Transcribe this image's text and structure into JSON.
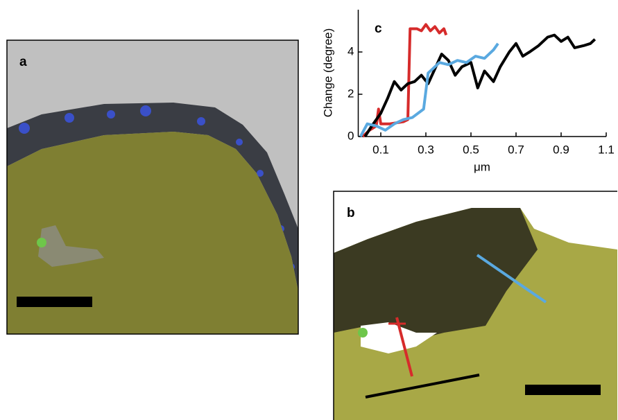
{
  "panels": [
    {
      "label": "a"
    },
    {
      "label": "b"
    }
  ],
  "chart_data": {
    "type": "line",
    "label": "c",
    "ylabel": "Change (degree)",
    "xlabel": "μm",
    "xlim": [
      0,
      1.1
    ],
    "xticks": [
      0.1,
      0.3,
      0.5,
      0.7,
      0.9,
      1.1
    ],
    "ylim": [
      0,
      6
    ],
    "yticks": [
      0,
      2,
      4
    ],
    "series": [
      {
        "name": "red",
        "color": "#d62b2b",
        "x": [
          0.02,
          0.05,
          0.08,
          0.09,
          0.1,
          0.14,
          0.2,
          0.22,
          0.23,
          0.26,
          0.28,
          0.3,
          0.32,
          0.34,
          0.36,
          0.38,
          0.39
        ],
        "values": [
          0,
          0.3,
          0.5,
          1.3,
          0.6,
          0.6,
          0.7,
          0.8,
          5.1,
          5.1,
          5.0,
          5.3,
          5.0,
          5.2,
          4.9,
          5.1,
          4.8
        ]
      },
      {
        "name": "black",
        "color": "#000000",
        "x": [
          0.03,
          0.06,
          0.1,
          0.13,
          0.16,
          0.19,
          0.22,
          0.25,
          0.28,
          0.31,
          0.34,
          0.37,
          0.4,
          0.43,
          0.46,
          0.5,
          0.53,
          0.56,
          0.6,
          0.63,
          0.67,
          0.7,
          0.73,
          0.76,
          0.8,
          0.84,
          0.87,
          0.9,
          0.93,
          0.96,
          1.0,
          1.03,
          1.05
        ],
        "values": [
          0,
          0.5,
          1.1,
          1.8,
          2.6,
          2.2,
          2.5,
          2.6,
          2.9,
          2.5,
          3.2,
          3.9,
          3.6,
          2.9,
          3.3,
          3.5,
          2.3,
          3.1,
          2.6,
          3.3,
          4.0,
          4.4,
          3.8,
          4.0,
          4.3,
          4.7,
          4.8,
          4.5,
          4.7,
          4.2,
          4.3,
          4.4,
          4.6
        ]
      },
      {
        "name": "blue",
        "color": "#5aa9e0",
        "x": [
          0.01,
          0.04,
          0.08,
          0.12,
          0.16,
          0.2,
          0.24,
          0.29,
          0.31,
          0.33,
          0.36,
          0.4,
          0.44,
          0.48,
          0.52,
          0.56,
          0.6,
          0.62
        ],
        "values": [
          0,
          0.6,
          0.5,
          0.3,
          0.6,
          0.8,
          0.9,
          1.3,
          3.0,
          3.2,
          3.5,
          3.4,
          3.6,
          3.5,
          3.8,
          3.7,
          4.1,
          4.4
        ]
      }
    ]
  }
}
